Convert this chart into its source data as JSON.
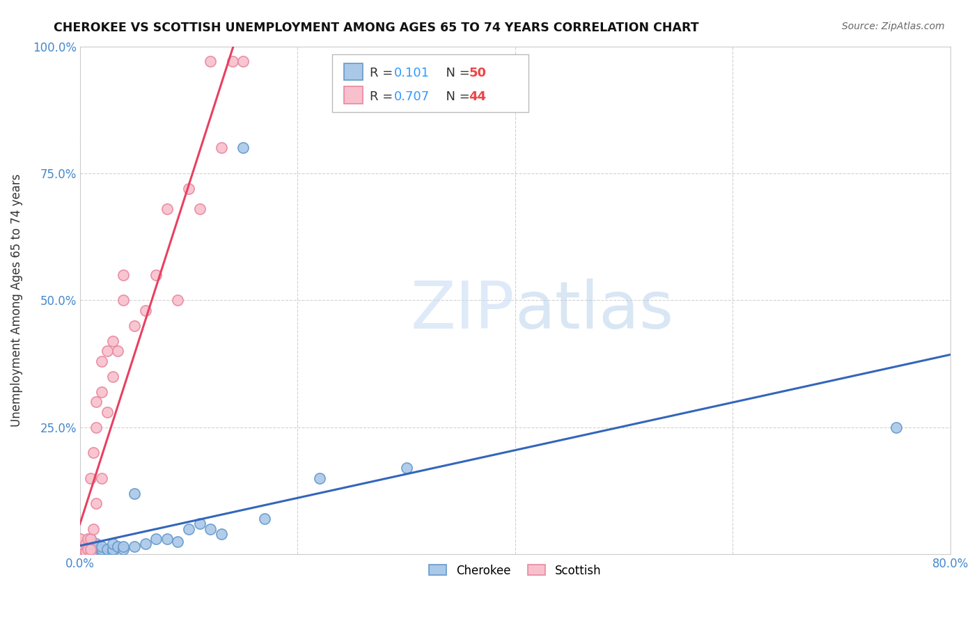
{
  "title": "CHEROKEE VS SCOTTISH UNEMPLOYMENT AMONG AGES 65 TO 74 YEARS CORRELATION CHART",
  "source": "Source: ZipAtlas.com",
  "ylabel": "Unemployment Among Ages 65 to 74 years",
  "xlim": [
    0,
    0.8
  ],
  "ylim": [
    0,
    1.0
  ],
  "cherokee_R": 0.101,
  "cherokee_N": 50,
  "scottish_R": 0.707,
  "scottish_N": 44,
  "cherokee_face": "#aac8e8",
  "cherokee_edge": "#6699cc",
  "scottish_face": "#f8c0cc",
  "scottish_edge": "#e888a0",
  "cherokee_line_color": "#3366bb",
  "scottish_line_color": "#e84060",
  "watermark_zip_color": "#c8dff5",
  "watermark_atlas_color": "#b0ccec",
  "cherokee_x": [
    0.0,
    0.0,
    0.0,
    0.0,
    0.0,
    0.0,
    0.0,
    0.0,
    0.005,
    0.005,
    0.005,
    0.005,
    0.007,
    0.007,
    0.01,
    0.01,
    0.01,
    0.01,
    0.01,
    0.012,
    0.012,
    0.015,
    0.015,
    0.015,
    0.015,
    0.02,
    0.02,
    0.02,
    0.025,
    0.03,
    0.03,
    0.03,
    0.035,
    0.04,
    0.04,
    0.05,
    0.05,
    0.06,
    0.07,
    0.08,
    0.09,
    0.1,
    0.11,
    0.12,
    0.13,
    0.15,
    0.17,
    0.22,
    0.3,
    0.75
  ],
  "cherokee_y": [
    0.0,
    0.0,
    0.0,
    0.005,
    0.005,
    0.01,
    0.01,
    0.02,
    0.0,
    0.005,
    0.01,
    0.02,
    0.0,
    0.01,
    0.0,
    0.005,
    0.01,
    0.02,
    0.03,
    0.005,
    0.01,
    0.0,
    0.005,
    0.01,
    0.02,
    0.005,
    0.01,
    0.015,
    0.01,
    0.005,
    0.01,
    0.02,
    0.015,
    0.01,
    0.015,
    0.015,
    0.12,
    0.02,
    0.03,
    0.03,
    0.025,
    0.05,
    0.06,
    0.05,
    0.04,
    0.8,
    0.07,
    0.15,
    0.17,
    0.25
  ],
  "scottish_x": [
    0.0,
    0.0,
    0.0,
    0.0,
    0.0,
    0.0,
    0.0,
    0.0,
    0.0,
    0.005,
    0.005,
    0.005,
    0.007,
    0.007,
    0.01,
    0.01,
    0.01,
    0.01,
    0.012,
    0.012,
    0.015,
    0.015,
    0.015,
    0.02,
    0.02,
    0.02,
    0.025,
    0.025,
    0.03,
    0.03,
    0.035,
    0.04,
    0.04,
    0.05,
    0.06,
    0.07,
    0.08,
    0.09,
    0.1,
    0.11,
    0.12,
    0.13,
    0.14,
    0.15
  ],
  "scottish_y": [
    0.0,
    0.0,
    0.005,
    0.005,
    0.01,
    0.01,
    0.02,
    0.02,
    0.03,
    0.0,
    0.005,
    0.02,
    0.01,
    0.03,
    0.0,
    0.01,
    0.03,
    0.15,
    0.05,
    0.2,
    0.1,
    0.25,
    0.3,
    0.15,
    0.32,
    0.38,
    0.28,
    0.4,
    0.35,
    0.42,
    0.4,
    0.5,
    0.55,
    0.45,
    0.48,
    0.55,
    0.68,
    0.5,
    0.72,
    0.68,
    0.97,
    0.8,
    0.97,
    0.97
  ]
}
